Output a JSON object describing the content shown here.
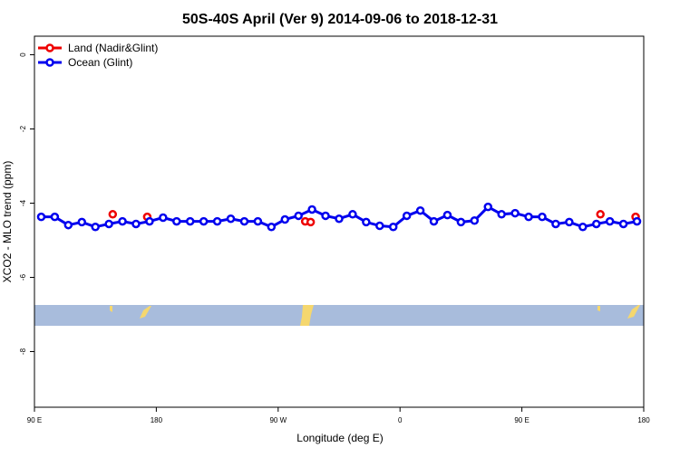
{
  "chart_data": {
    "type": "line",
    "title": "50S-40S April (Ver 9)   2014-09-06 to 2018-12-31",
    "x_label": "Longitude (deg E)",
    "y_label": "XCO2 - MLO trend (ppm)",
    "xlim": [
      90,
      540
    ],
    "xticks": [
      {
        "value": 90,
        "label": "90 E"
      },
      {
        "value": 180,
        "label": "180"
      },
      {
        "value": 270,
        "label": "90 W"
      },
      {
        "value": 360,
        "label": "0"
      },
      {
        "value": 450,
        "label": "90 E"
      },
      {
        "value": 540,
        "label": "180"
      }
    ],
    "ylim": [
      -9.5,
      0.5
    ],
    "yticks": [
      0,
      -2,
      -4,
      -6,
      -8
    ],
    "legend": "top-left",
    "series": [
      {
        "name": "Land (Nadir&Glint)",
        "color": "#ee0000",
        "line": false,
        "x": [
          147.8,
          173.3,
          290,
          294,
          508,
          534
        ],
        "values": [
          -4.3,
          -4.37,
          -4.49,
          -4.51,
          -4.3,
          -4.37
        ]
      },
      {
        "name": "Ocean (Glint)",
        "color": "#0000ee",
        "line": true,
        "x": [
          95,
          105,
          115,
          125,
          135,
          145,
          155,
          165,
          175,
          185,
          195,
          205,
          215,
          225,
          235,
          245,
          255,
          265,
          275,
          285,
          295,
          305,
          315,
          325,
          335,
          345,
          355,
          365,
          375,
          385,
          395,
          405,
          415,
          425,
          435,
          445,
          455,
          465,
          475,
          485,
          495,
          505,
          515,
          525,
          535
        ],
        "values": [
          -4.37,
          -4.37,
          -4.59,
          -4.51,
          -4.64,
          -4.56,
          -4.49,
          -4.56,
          -4.49,
          -4.39,
          -4.49,
          -4.49,
          -4.49,
          -4.49,
          -4.42,
          -4.49,
          -4.49,
          -4.64,
          -4.44,
          -4.34,
          -4.17,
          -4.34,
          -4.42,
          -4.3,
          -4.51,
          -4.61,
          -4.64,
          -4.34,
          -4.2,
          -4.49,
          -4.32,
          -4.51,
          -4.47,
          -4.1,
          -4.3,
          -4.27,
          -4.37,
          -4.37,
          -4.56,
          -4.51,
          -4.64,
          -4.56,
          -4.49,
          -4.56,
          -4.49
        ]
      }
    ]
  }
}
